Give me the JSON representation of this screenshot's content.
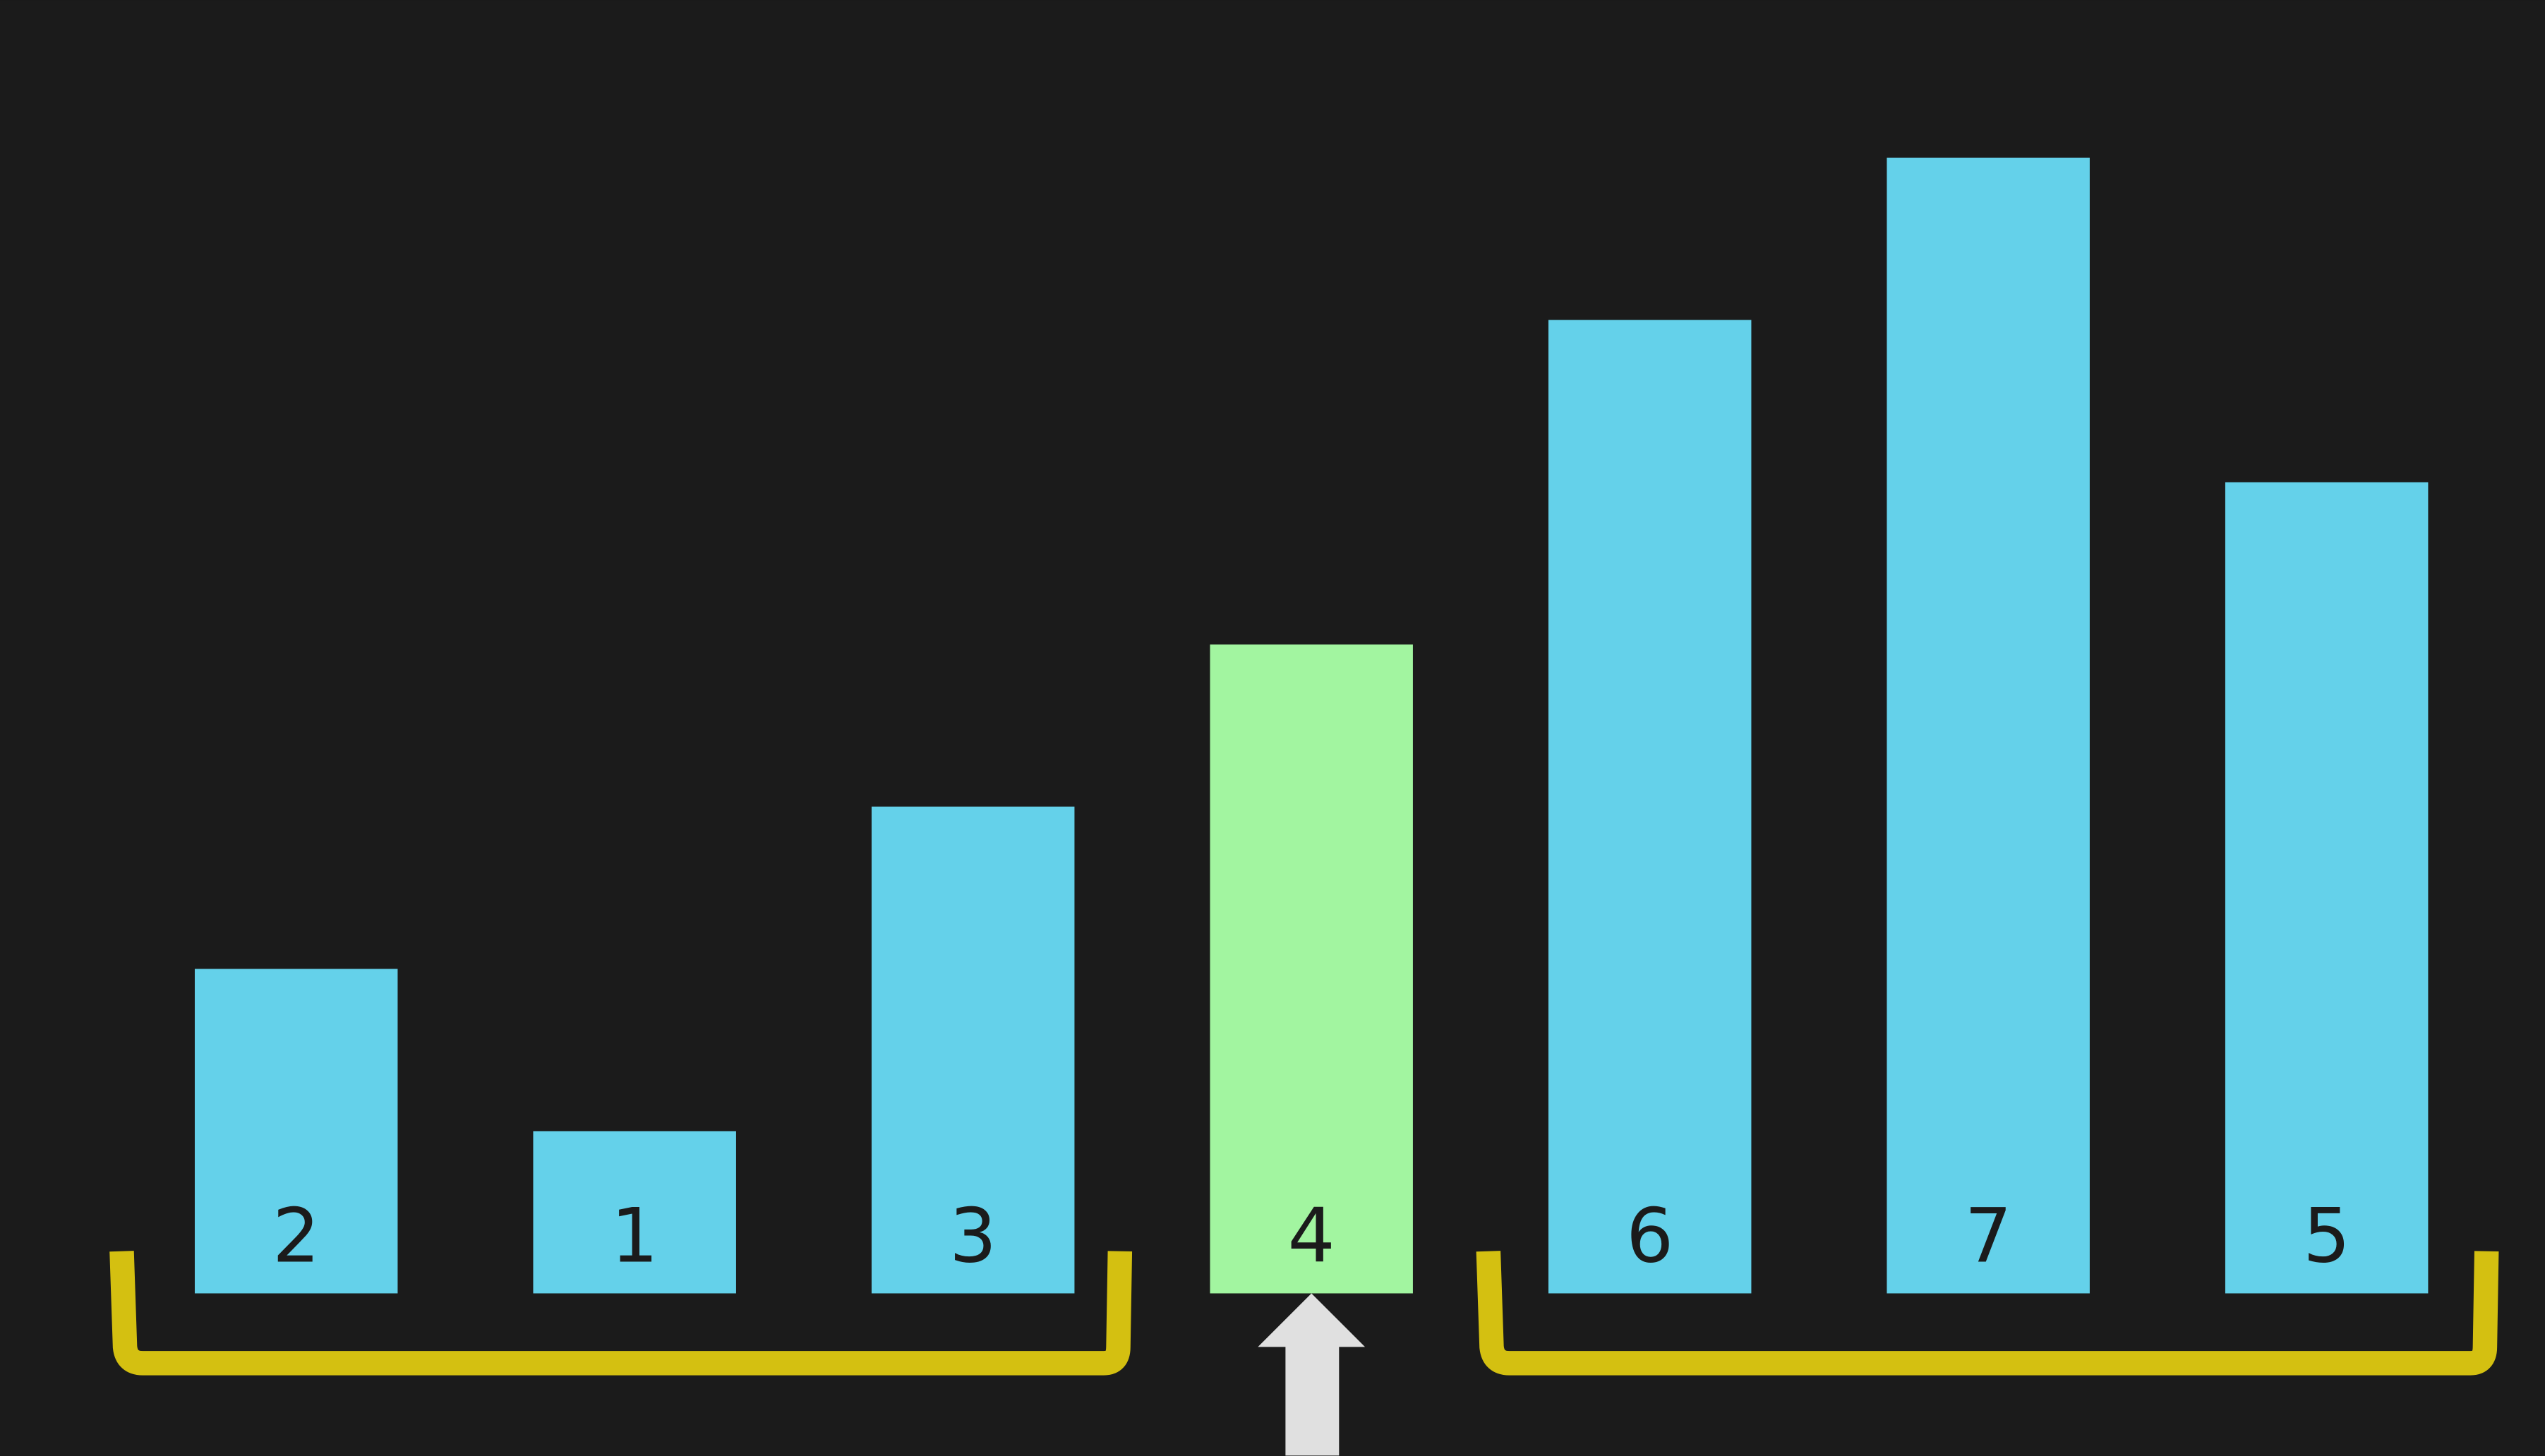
{
  "chart_data": {
    "type": "bar",
    "values": [
      2,
      1,
      3,
      4,
      6,
      7,
      5
    ],
    "colors": [
      "#64d1ea",
      "#64d1ea",
      "#64d1ea",
      "#a2f5a0",
      "#64d1ea",
      "#64d1ea",
      "#64d1ea"
    ]
  }
}
